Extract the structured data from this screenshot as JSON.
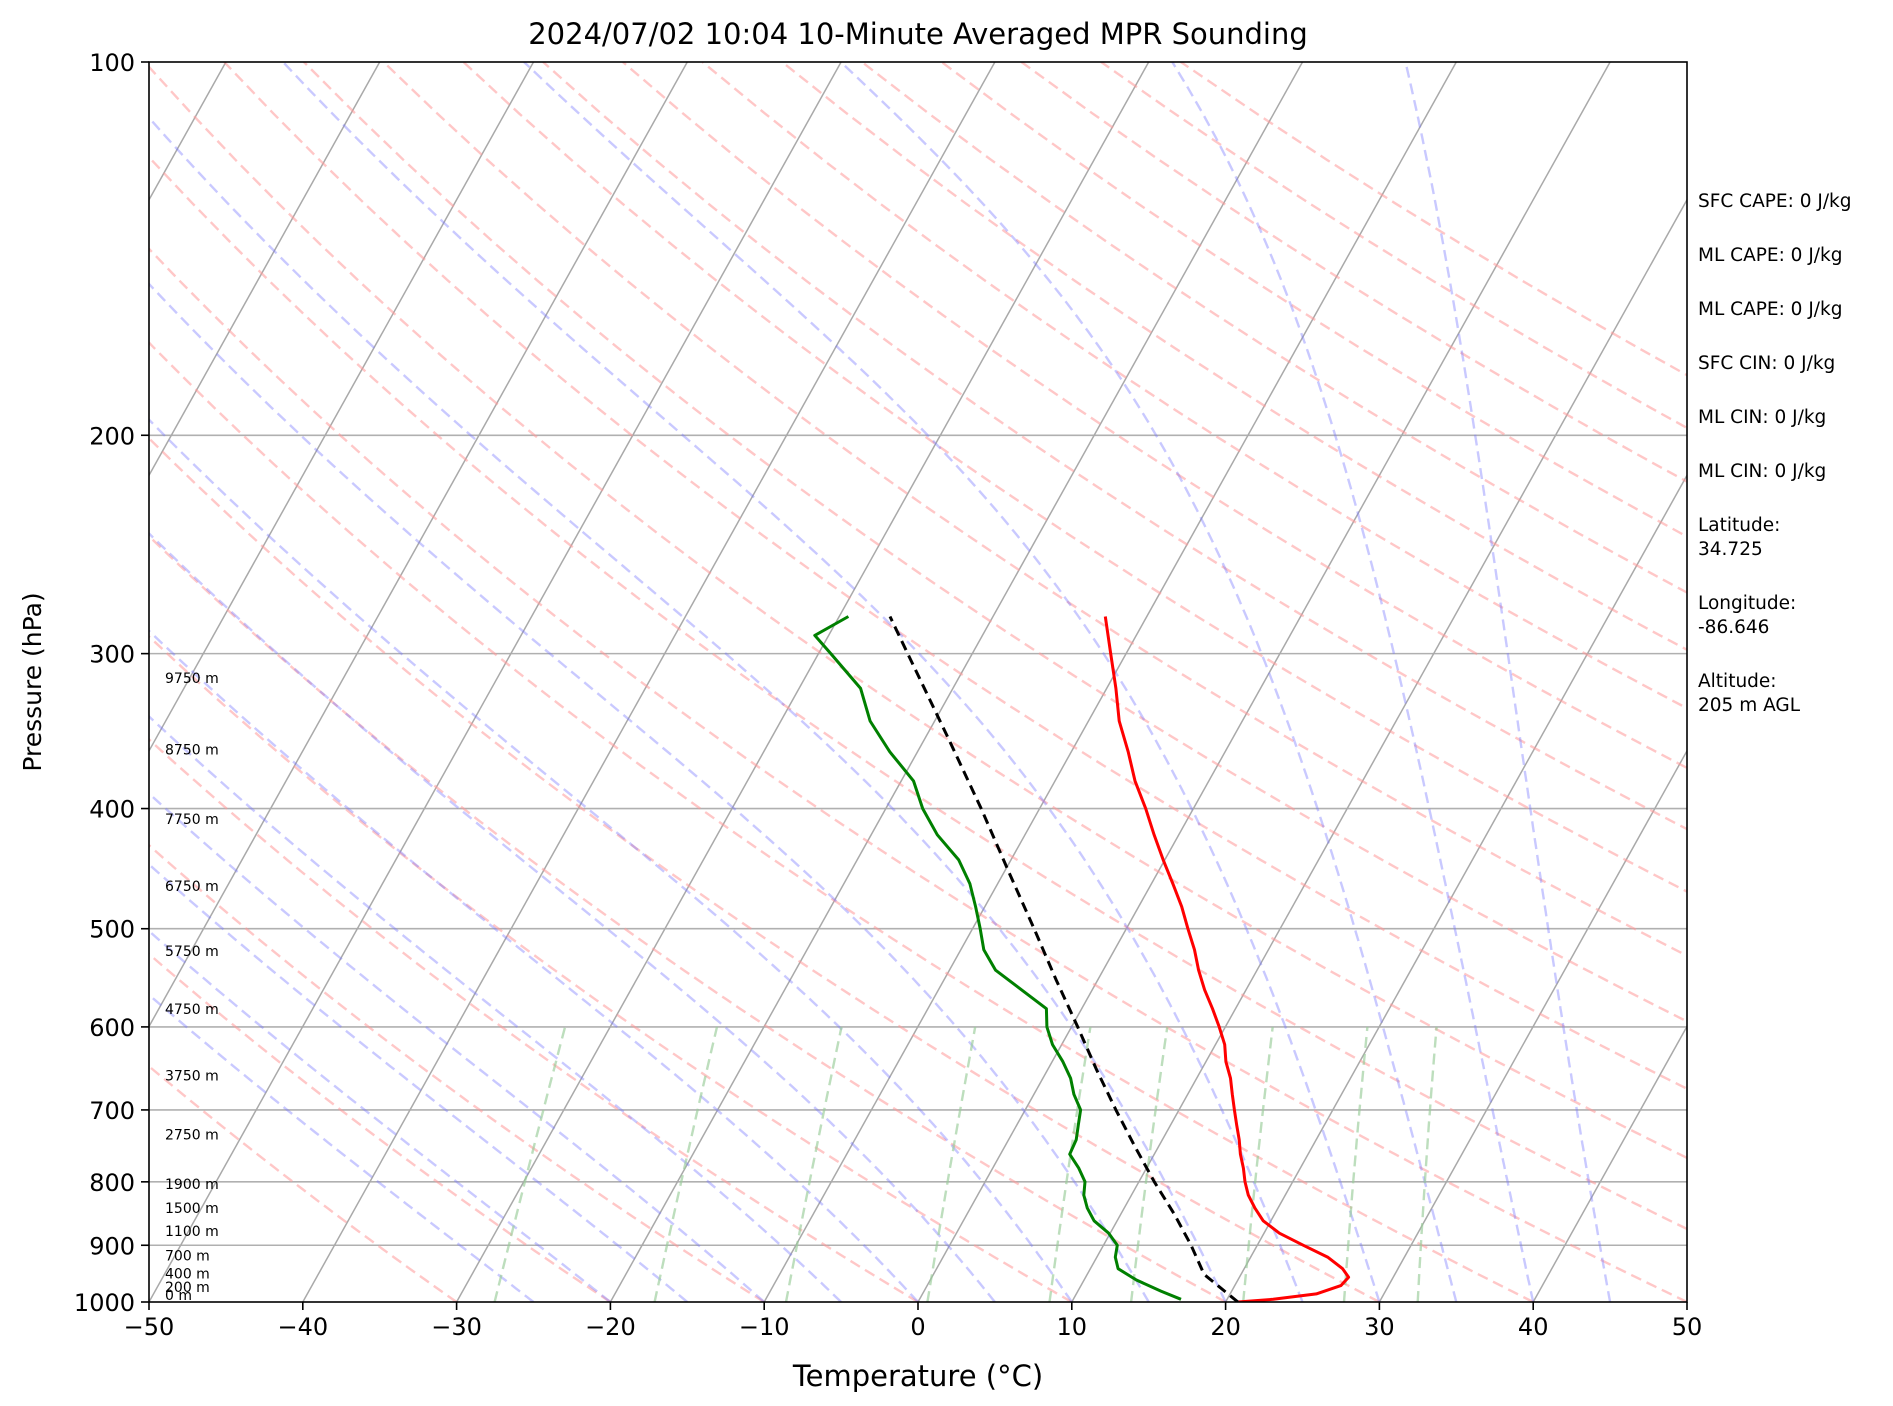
{
  "chart_data": {
    "type": "line",
    "title": "2024/07/02 10:04 10-Minute Averaged MPR Sounding",
    "xlabel": "Temperature (°C)",
    "ylabel": "Pressure (hPa)",
    "xlim": [
      -50,
      50
    ],
    "ylim": [
      1000,
      100
    ],
    "y_scale": "log",
    "skew_deg_per_log_decade": 45,
    "x_ticks": [
      "−50",
      "−40",
      "−30",
      "−20",
      "−10",
      "0",
      "10",
      "20",
      "30",
      "40",
      "50"
    ],
    "y_ticks": [
      "100",
      "200",
      "300",
      "400",
      "500",
      "600",
      "700",
      "800",
      "900",
      "1000"
    ],
    "grid": true,
    "series": [
      {
        "kind": "temperature",
        "color": "#ff0000",
        "points": [
          {
            "p": 1000,
            "t": 20.8
          },
          {
            "p": 995,
            "t": 23.0
          },
          {
            "p": 985,
            "t": 25.6
          },
          {
            "p": 970,
            "t": 26.9
          },
          {
            "p": 955,
            "t": 27.1
          },
          {
            "p": 940,
            "t": 26.4
          },
          {
            "p": 920,
            "t": 25.0
          },
          {
            "p": 900,
            "t": 23.0
          },
          {
            "p": 880,
            "t": 21.0
          },
          {
            "p": 860,
            "t": 19.5
          },
          {
            "p": 840,
            "t": 18.5
          },
          {
            "p": 820,
            "t": 17.6
          },
          {
            "p": 800,
            "t": 16.9
          },
          {
            "p": 780,
            "t": 16.3
          },
          {
            "p": 760,
            "t": 15.6
          },
          {
            "p": 740,
            "t": 15.0
          },
          {
            "p": 720,
            "t": 14.3
          },
          {
            "p": 700,
            "t": 13.6
          },
          {
            "p": 680,
            "t": 12.9
          },
          {
            "p": 660,
            "t": 12.2
          },
          {
            "p": 640,
            "t": 11.3
          },
          {
            "p": 620,
            "t": 10.6
          },
          {
            "p": 600,
            "t": 9.6
          },
          {
            "p": 580,
            "t": 8.5
          },
          {
            "p": 560,
            "t": 7.3
          },
          {
            "p": 540,
            "t": 6.2
          },
          {
            "p": 520,
            "t": 5.2
          },
          {
            "p": 500,
            "t": 4.0
          },
          {
            "p": 480,
            "t": 2.8
          },
          {
            "p": 460,
            "t": 1.4
          },
          {
            "p": 440,
            "t": -0.1
          },
          {
            "p": 420,
            "t": -1.6
          },
          {
            "p": 400,
            "t": -3.1
          },
          {
            "p": 380,
            "t": -4.8
          },
          {
            "p": 360,
            "t": -6.3
          },
          {
            "p": 340,
            "t": -8.0
          },
          {
            "p": 320,
            "t": -9.4
          },
          {
            "p": 300,
            "t": -11.0
          },
          {
            "p": 280,
            "t": -12.7
          }
        ]
      },
      {
        "kind": "dewpoint",
        "color": "#008000",
        "points": [
          {
            "p": 995,
            "t": 17.0
          },
          {
            "p": 980,
            "t": 15.4
          },
          {
            "p": 960,
            "t": 13.4
          },
          {
            "p": 940,
            "t": 11.8
          },
          {
            "p": 920,
            "t": 11.2
          },
          {
            "p": 900,
            "t": 10.9
          },
          {
            "p": 880,
            "t": 9.9
          },
          {
            "p": 860,
            "t": 8.5
          },
          {
            "p": 840,
            "t": 7.6
          },
          {
            "p": 820,
            "t": 6.9
          },
          {
            "p": 800,
            "t": 6.5
          },
          {
            "p": 780,
            "t": 5.6
          },
          {
            "p": 760,
            "t": 4.5
          },
          {
            "p": 740,
            "t": 4.4
          },
          {
            "p": 720,
            "t": 4.0
          },
          {
            "p": 700,
            "t": 3.6
          },
          {
            "p": 680,
            "t": 2.6
          },
          {
            "p": 660,
            "t": 1.8
          },
          {
            "p": 640,
            "t": 0.7
          },
          {
            "p": 620,
            "t": -0.6
          },
          {
            "p": 600,
            "t": -1.6
          },
          {
            "p": 580,
            "t": -2.3
          },
          {
            "p": 560,
            "t": -4.6
          },
          {
            "p": 540,
            "t": -7.0
          },
          {
            "p": 520,
            "t": -8.5
          },
          {
            "p": 500,
            "t": -9.5
          },
          {
            "p": 480,
            "t": -10.6
          },
          {
            "p": 460,
            "t": -11.8
          },
          {
            "p": 440,
            "t": -13.4
          },
          {
            "p": 420,
            "t": -15.7
          },
          {
            "p": 400,
            "t": -17.6
          },
          {
            "p": 380,
            "t": -19.2
          },
          {
            "p": 360,
            "t": -21.8
          },
          {
            "p": 340,
            "t": -24.2
          },
          {
            "p": 320,
            "t": -26.0
          },
          {
            "p": 300,
            "t": -29.2
          },
          {
            "p": 290,
            "t": -30.9
          },
          {
            "p": 280,
            "t": -29.4
          }
        ]
      },
      {
        "kind": "parcel",
        "color": "#000000",
        "points": [
          {
            "p": 1000,
            "t": 20.8
          },
          {
            "p": 950,
            "t": 17.6
          },
          {
            "p": 900,
            "t": 15.7
          },
          {
            "p": 850,
            "t": 13.5
          },
          {
            "p": 800,
            "t": 11.0
          },
          {
            "p": 750,
            "t": 8.5
          },
          {
            "p": 700,
            "t": 5.9
          },
          {
            "p": 650,
            "t": 3.2
          },
          {
            "p": 600,
            "t": 0.4
          },
          {
            "p": 550,
            "t": -2.7
          },
          {
            "p": 500,
            "t": -6.0
          },
          {
            "p": 450,
            "t": -9.7
          },
          {
            "p": 400,
            "t": -13.8
          },
          {
            "p": 350,
            "t": -18.6
          },
          {
            "p": 300,
            "t": -24.2
          },
          {
            "p": 280,
            "t": -26.7
          }
        ]
      }
    ],
    "height_labels": [
      {
        "text": "0 m",
        "p": 1000
      },
      {
        "text": "200 m",
        "p": 985
      },
      {
        "text": "400 m",
        "p": 961
      },
      {
        "text": "700 m",
        "p": 929
      },
      {
        "text": "1100 m",
        "p": 888
      },
      {
        "text": "1500 m",
        "p": 851
      },
      {
        "text": "1900 m",
        "p": 814
      },
      {
        "text": "2750 m",
        "p": 742
      },
      {
        "text": "3750 m",
        "p": 665
      },
      {
        "text": "4750 m",
        "p": 588
      },
      {
        "text": "5750 m",
        "p": 528
      },
      {
        "text": "6750 m",
        "p": 468
      },
      {
        "text": "7750 m",
        "p": 413
      },
      {
        "text": "8750 m",
        "p": 363
      },
      {
        "text": "9750 m",
        "p": 318
      }
    ]
  },
  "info": [
    "SFC CAPE: 0 J/kg",
    "ML CAPE: 0 J/kg",
    "ML CAPE: 0 J/kg",
    "SFC CIN: 0 J/kg",
    "ML CIN: 0 J/kg",
    "ML CIN: 0 J/kg",
    "Latitude:\n34.725",
    "Longitude:\n-86.646",
    "Altitude:\n205 m AGL"
  ]
}
